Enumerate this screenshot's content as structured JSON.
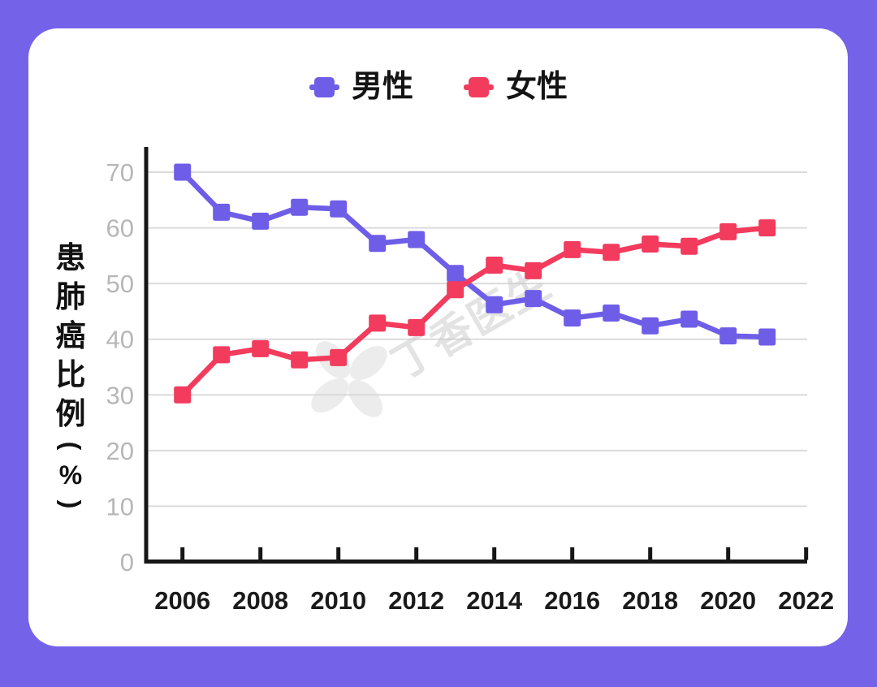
{
  "page": {
    "background_color": "#7463E9",
    "card_color": "#FFFFFF"
  },
  "legend": {
    "items": [
      {
        "label": "男性",
        "color": "#6E5DE7"
      },
      {
        "label": "女性",
        "color": "#F23B5D"
      }
    ]
  },
  "watermark": {
    "text": "丁香医生"
  },
  "chart_data": {
    "type": "line",
    "title": "",
    "xlabel": "",
    "ylabel": "患肺癌比例(%)",
    "x": [
      2006,
      2007,
      2008,
      2009,
      2010,
      2011,
      2012,
      2013,
      2014,
      2015,
      2016,
      2017,
      2018,
      2019,
      2020,
      2021
    ],
    "x_tick_labels": [
      "2006",
      "2008",
      "2010",
      "2012",
      "2014",
      "2016",
      "2018",
      "2020",
      "2022"
    ],
    "y_ticks": [
      0,
      10,
      20,
      30,
      40,
      50,
      60,
      70
    ],
    "xlim": [
      2005,
      2022
    ],
    "ylim": [
      0,
      74.5
    ],
    "grid": "horizontal-only",
    "legend_position": "top-center",
    "series": [
      {
        "name": "男性",
        "color": "#6E5DE7",
        "marker": "square",
        "values": [
          70.0,
          62.8,
          61.2,
          63.7,
          63.4,
          57.2,
          57.9,
          51.8,
          46.2,
          47.3,
          43.8,
          44.7,
          42.4,
          43.6,
          40.6,
          40.4
        ]
      },
      {
        "name": "女性",
        "color": "#F23B5D",
        "marker": "square",
        "values": [
          30.0,
          37.2,
          38.3,
          36.3,
          36.7,
          42.9,
          42.1,
          48.9,
          53.3,
          52.3,
          56.1,
          55.6,
          57.1,
          56.7,
          59.3,
          60.0
        ]
      }
    ],
    "styles": {
      "axis_color": "#161616",
      "grid_color": "#DBDBDB",
      "x_tick_label_color": "#1A1A1A",
      "y_tick_label_color": "#B7B7B7",
      "watermark_color": "#C9C9C9"
    }
  }
}
